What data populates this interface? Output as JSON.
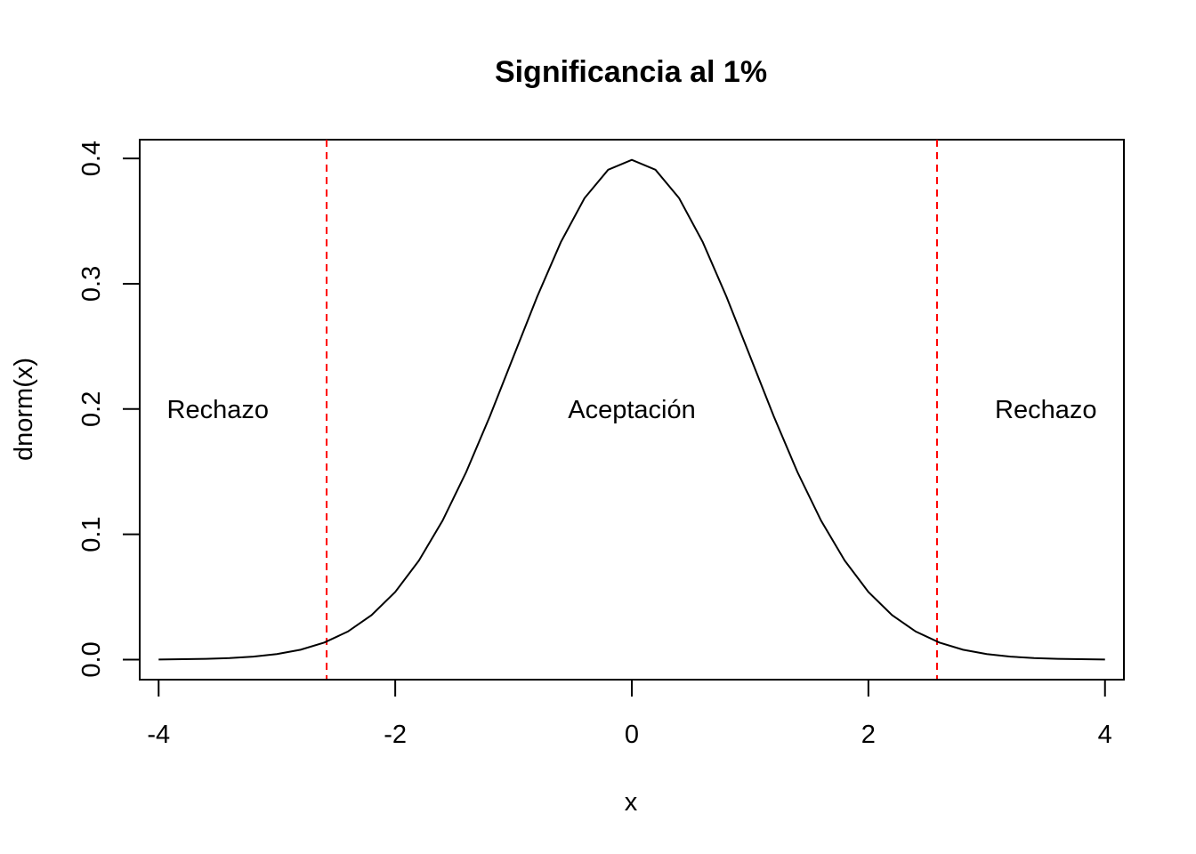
{
  "chart_data": {
    "type": "line",
    "title": "Significancia al 1%",
    "xlabel": "x",
    "ylabel": "dnorm(x)",
    "xlim": [
      -4.16,
      4.16
    ],
    "ylim": [
      -0.016,
      0.415
    ],
    "x_ticks": [
      -4,
      -2,
      0,
      2,
      4
    ],
    "x_tick_labels": [
      "-4",
      "-2",
      "0",
      "2",
      "4"
    ],
    "y_ticks": [
      0.0,
      0.1,
      0.2,
      0.3,
      0.4
    ],
    "y_tick_labels": [
      "0.0",
      "0.1",
      "0.2",
      "0.3",
      "0.4"
    ],
    "series": [
      {
        "color": "#000000",
        "x": [
          -4.0,
          -3.8,
          -3.6,
          -3.4,
          -3.2,
          -3.0,
          -2.8,
          -2.6,
          -2.4,
          -2.2,
          -2.0,
          -1.8,
          -1.6,
          -1.4,
          -1.2,
          -1.0,
          -0.8,
          -0.6,
          -0.4,
          -0.2,
          0.0,
          0.2,
          0.4,
          0.6,
          0.8,
          1.0,
          1.2,
          1.4,
          1.6,
          1.8,
          2.0,
          2.2,
          2.4,
          2.6,
          2.8,
          3.0,
          3.2,
          3.4,
          3.6,
          3.8,
          4.0
        ],
        "y": [
          0.0001,
          0.0003,
          0.0006,
          0.0012,
          0.0024,
          0.0044,
          0.0079,
          0.0136,
          0.0224,
          0.0355,
          0.054,
          0.079,
          0.1109,
          0.1497,
          0.1942,
          0.242,
          0.2897,
          0.3332,
          0.3683,
          0.391,
          0.3989,
          0.391,
          0.3683,
          0.3332,
          0.2897,
          0.242,
          0.1942,
          0.1497,
          0.1109,
          0.079,
          0.054,
          0.0355,
          0.0224,
          0.0136,
          0.0079,
          0.0044,
          0.0024,
          0.0012,
          0.0006,
          0.0003,
          0.0001
        ]
      }
    ],
    "vlines": [
      {
        "x": -2.58,
        "color": "#ff0000",
        "style": "dashed"
      },
      {
        "x": 2.58,
        "color": "#ff0000",
        "style": "dashed"
      }
    ],
    "annotations": [
      {
        "text": "Rechazo",
        "x": -3.5,
        "y": 0.2
      },
      {
        "text": "Aceptación",
        "x": 0.0,
        "y": 0.2
      },
      {
        "text": "Rechazo",
        "x": 3.5,
        "y": 0.2
      }
    ],
    "grid": false,
    "legend": "none"
  }
}
